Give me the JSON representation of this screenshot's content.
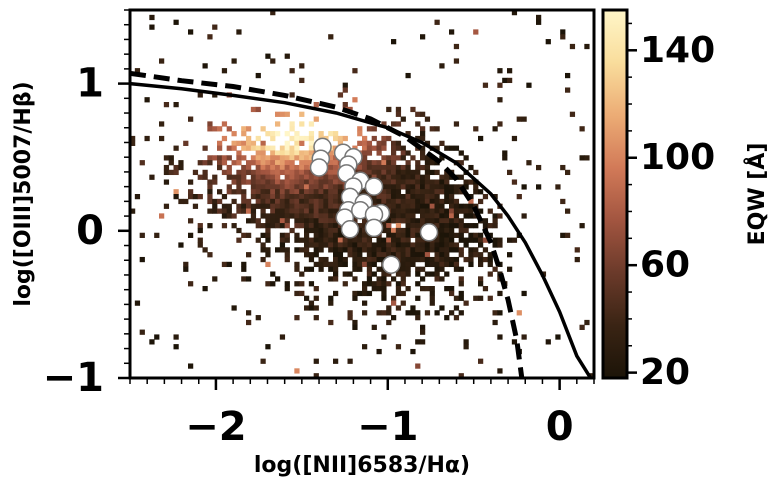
{
  "chart_data": {
    "type": "heatmap",
    "xlabel": "log([NII]6583/Hα)",
    "ylabel": "log([OIII]5007/Hβ)",
    "xlim": [
      -2.5,
      0.2
    ],
    "ylim": [
      -1.0,
      1.5
    ],
    "x_ticks": [
      {
        "value": -2,
        "label": "−2"
      },
      {
        "value": -1,
        "label": "−1"
      },
      {
        "value": 0,
        "label": "0"
      }
    ],
    "y_ticks": [
      {
        "value": -1,
        "label": "−1"
      },
      {
        "value": 0,
        "label": "0"
      },
      {
        "value": 1,
        "label": "1"
      }
    ],
    "colorbar": {
      "label": "EQW [Å]",
      "range": [
        18,
        155
      ],
      "ticks": [
        {
          "value": 20,
          "label": "20"
        },
        {
          "value": 60,
          "label": "60"
        },
        {
          "value": 100,
          "label": "100"
        },
        {
          "value": 140,
          "label": "140"
        }
      ],
      "colormap": [
        "#1c1408",
        "#3a2414",
        "#6b3a2a",
        "#a25540",
        "#d27a58",
        "#ecac75",
        "#f9dd9c",
        "#fff6c8"
      ]
    },
    "curves": [
      {
        "style": "solid",
        "color": "#000000",
        "points": [
          [
            -2.5,
            1.0
          ],
          [
            -2.2,
            0.965
          ],
          [
            -1.9,
            0.92
          ],
          [
            -1.6,
            0.87
          ],
          [
            -1.3,
            0.8
          ],
          [
            -1.0,
            0.7
          ],
          [
            -0.8,
            0.6
          ],
          [
            -0.6,
            0.46
          ],
          [
            -0.4,
            0.25
          ],
          [
            -0.3,
            0.1
          ],
          [
            -0.2,
            -0.08
          ],
          [
            -0.1,
            -0.3
          ],
          [
            0.0,
            -0.55
          ],
          [
            0.1,
            -0.85
          ],
          [
            0.18,
            -1.0
          ]
        ]
      },
      {
        "style": "dashed",
        "color": "#000000",
        "points": [
          [
            -2.5,
            1.07
          ],
          [
            -2.2,
            1.02
          ],
          [
            -1.9,
            0.98
          ],
          [
            -1.6,
            0.92
          ],
          [
            -1.3,
            0.84
          ],
          [
            -1.1,
            0.76
          ],
          [
            -0.9,
            0.64
          ],
          [
            -0.7,
            0.47
          ],
          [
            -0.6,
            0.35
          ],
          [
            -0.5,
            0.17
          ],
          [
            -0.4,
            -0.08
          ],
          [
            -0.35,
            -0.26
          ],
          [
            -0.3,
            -0.47
          ],
          [
            -0.25,
            -0.74
          ],
          [
            -0.22,
            -1.0
          ]
        ]
      }
    ],
    "points": [
      {
        "x": -1.38,
        "y": 0.57
      },
      {
        "x": -1.39,
        "y": 0.49
      },
      {
        "x": -1.4,
        "y": 0.43
      },
      {
        "x": -1.26,
        "y": 0.53
      },
      {
        "x": -1.2,
        "y": 0.5
      },
      {
        "x": -1.23,
        "y": 0.45
      },
      {
        "x": -1.24,
        "y": 0.39
      },
      {
        "x": -1.16,
        "y": 0.34
      },
      {
        "x": -1.2,
        "y": 0.3
      },
      {
        "x": -1.08,
        "y": 0.3
      },
      {
        "x": -1.22,
        "y": 0.23
      },
      {
        "x": -1.14,
        "y": 0.19
      },
      {
        "x": -1.23,
        "y": 0.14
      },
      {
        "x": -1.16,
        "y": 0.14
      },
      {
        "x": -1.04,
        "y": 0.12
      },
      {
        "x": -1.08,
        "y": 0.11
      },
      {
        "x": -1.25,
        "y": 0.09
      },
      {
        "x": -1.22,
        "y": 0.01
      },
      {
        "x": -1.08,
        "y": 0.02
      },
      {
        "x": -0.98,
        "y": -0.23
      },
      {
        "x": -0.76,
        "y": -0.01
      }
    ]
  }
}
